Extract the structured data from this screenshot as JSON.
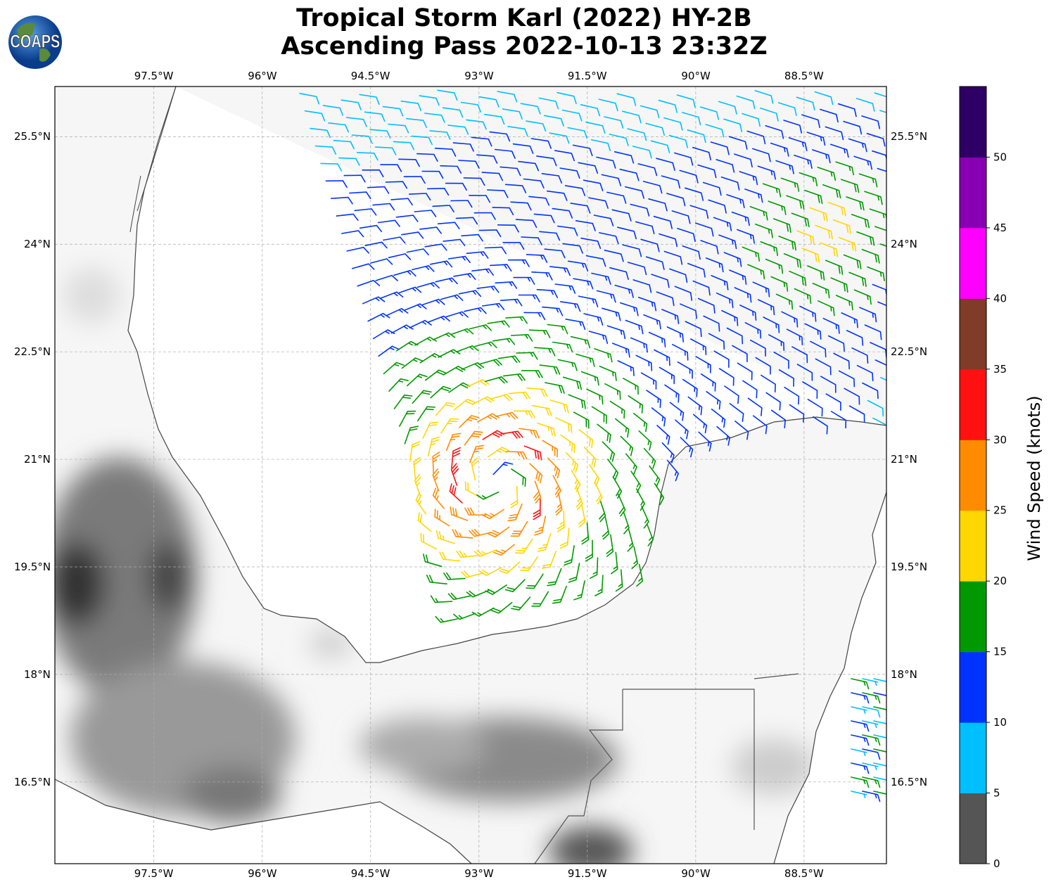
{
  "title": {
    "line1": "Tropical Storm Karl (2022) HY-2B",
    "line2": "Ascending Pass 2022-10-13 23:32Z"
  },
  "logo_text": "COAPS",
  "map": {
    "lon_ticks": [
      "97.5°W",
      "96°W",
      "94.5°W",
      "93°W",
      "91.5°W",
      "90°W",
      "88.5°W"
    ],
    "lat_ticks": [
      "25.5°N",
      "24°N",
      "22.5°N",
      "21°N",
      "19.5°N",
      "18°N",
      "16.5°N"
    ],
    "lon_values": [
      -97.5,
      -96,
      -94.5,
      -93,
      -91.5,
      -90,
      -88.5
    ],
    "lat_values": [
      25.5,
      24,
      22.5,
      21,
      19.5,
      18,
      16.5
    ],
    "lon_range": [
      -98.87,
      -87.36
    ],
    "lat_range": [
      15.36,
      26.2
    ],
    "storm_center": {
      "lon": -92.75,
      "lat": 20.7
    },
    "max_wind_knots": 32
  },
  "colorbar": {
    "label": "Wind Speed (knots)",
    "ticks": [
      "0",
      "5",
      "10",
      "15",
      "20",
      "25",
      "30",
      "35",
      "40",
      "45",
      "50"
    ],
    "colors": [
      "#555555",
      "#00bfff",
      "#0033ff",
      "#009900",
      "#ffd700",
      "#ff8c00",
      "#ff1111",
      "#803c28",
      "#ff00ff",
      "#8800b3",
      "#2e0066"
    ]
  }
}
